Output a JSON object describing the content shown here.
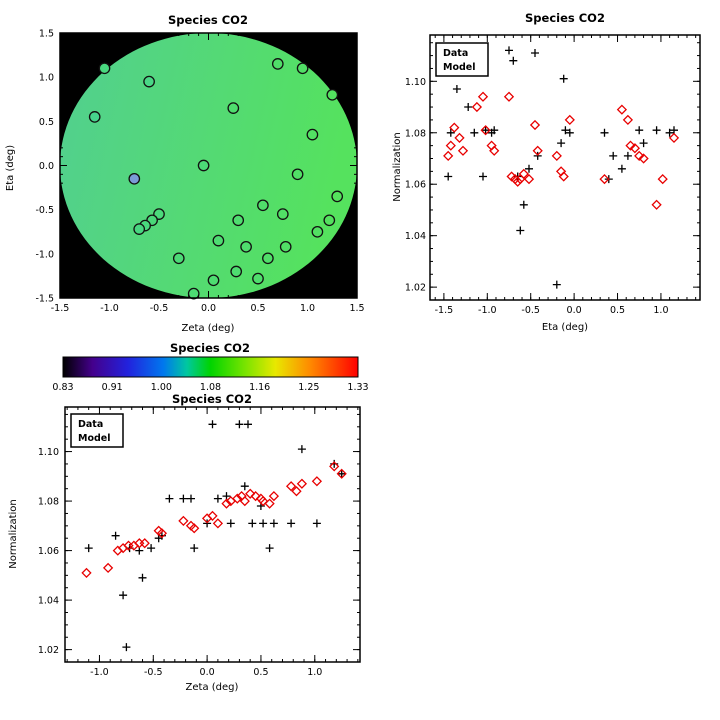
{
  "page": {
    "background": "#ffffff"
  },
  "chart_data": [
    {
      "id": "map",
      "type": "heatmap",
      "title": "Species CO2",
      "xlabel": "Zeta (deg)",
      "ylabel": "Eta (deg)",
      "xlim": [
        -1.5,
        1.5
      ],
      "ylim": [
        -1.5,
        1.5
      ],
      "xticks": [
        -1.5,
        -1.0,
        -0.5,
        0.0,
        0.5,
        1.0,
        1.5
      ],
      "xtick_labels": [
        "-1.5",
        "-1.0",
        "-0.5",
        "0.0",
        "0.5",
        "1.0",
        "1.5"
      ],
      "yticks": [
        -1.5,
        -1.0,
        -0.5,
        0.0,
        0.5,
        1.0,
        1.5
      ],
      "ytick_labels": [
        "-1.5",
        "-1.0",
        "-0.5",
        "0.0",
        "0.5",
        "1.0",
        "1.5"
      ],
      "minor_x": 0.1,
      "minor_y": 0.1,
      "background": "#000000",
      "disk": {
        "cx": 0,
        "cy": 0,
        "r": 1.5,
        "color_left": "#52cf90",
        "color_right": "#55e25e"
      },
      "points": [
        {
          "x": -1.05,
          "y": 1.1,
          "c": "#49d87f"
        },
        {
          "x": -0.6,
          "y": 0.95,
          "c": "#4ad786"
        },
        {
          "x": -1.15,
          "y": 0.55,
          "c": "#46d48c"
        },
        {
          "x": 0.25,
          "y": 0.65,
          "c": "#4fdd6e"
        },
        {
          "x": 0.7,
          "y": 1.15,
          "c": "#50de69"
        },
        {
          "x": 0.95,
          "y": 1.1,
          "c": "#51df66"
        },
        {
          "x": 1.25,
          "y": 0.8,
          "c": "#53e15f"
        },
        {
          "x": 1.05,
          "y": 0.35,
          "c": "#52e063"
        },
        {
          "x": -0.05,
          "y": 0.0,
          "c": "#4cda77"
        },
        {
          "x": -0.75,
          "y": -0.15,
          "c": "#7b9bd6"
        },
        {
          "x": 0.9,
          "y": -0.1,
          "c": "#51df66"
        },
        {
          "x": 1.3,
          "y": -0.35,
          "c": "#54e25c"
        },
        {
          "x": 0.55,
          "y": -0.45,
          "c": "#50de6a"
        },
        {
          "x": 0.75,
          "y": -0.55,
          "c": "#51df66"
        },
        {
          "x": -0.5,
          "y": -0.55,
          "c": "#4bd97b"
        },
        {
          "x": -0.57,
          "y": -0.62,
          "c": "#4ad779"
        },
        {
          "x": -0.64,
          "y": -0.68,
          "c": "#49d77d"
        },
        {
          "x": -0.7,
          "y": -0.72,
          "c": "#48d680"
        },
        {
          "x": 0.3,
          "y": -0.62,
          "c": "#4fdd6f"
        },
        {
          "x": 1.1,
          "y": -0.75,
          "c": "#52e062"
        },
        {
          "x": 1.22,
          "y": -0.62,
          "c": "#53e15e"
        },
        {
          "x": 0.1,
          "y": -0.85,
          "c": "#4edc72"
        },
        {
          "x": 0.38,
          "y": -0.92,
          "c": "#4fdd6d"
        },
        {
          "x": 0.78,
          "y": -0.92,
          "c": "#51df66"
        },
        {
          "x": -0.3,
          "y": -1.05,
          "c": "#4cda76"
        },
        {
          "x": 0.6,
          "y": -1.05,
          "c": "#50de69"
        },
        {
          "x": 0.28,
          "y": -1.2,
          "c": "#4edc70"
        },
        {
          "x": 0.5,
          "y": -1.28,
          "c": "#4fdd6c"
        },
        {
          "x": 0.05,
          "y": -1.3,
          "c": "#4edc71"
        },
        {
          "x": -0.15,
          "y": -1.45,
          "c": "#4ddb73"
        }
      ]
    },
    {
      "id": "colorbar",
      "type": "colorbar",
      "title": "Species CO2",
      "labels": [
        "0.83",
        "0.91",
        "1.00",
        "1.08",
        "1.16",
        "1.25",
        "1.33"
      ],
      "stops": [
        {
          "p": 0,
          "c": "#000000"
        },
        {
          "p": 0.1,
          "c": "#44008c"
        },
        {
          "p": 0.22,
          "c": "#2222dd"
        },
        {
          "p": 0.34,
          "c": "#0077ee"
        },
        {
          "p": 0.42,
          "c": "#00c8a0"
        },
        {
          "p": 0.5,
          "c": "#00d400"
        },
        {
          "p": 0.62,
          "c": "#7ce400"
        },
        {
          "p": 0.72,
          "c": "#e8e800"
        },
        {
          "p": 0.84,
          "c": "#ff8800"
        },
        {
          "p": 1,
          "c": "#ff0000"
        }
      ]
    },
    {
      "id": "scatter_eta",
      "type": "scatter",
      "title": "Species CO2",
      "xlabel": "Eta (deg)",
      "ylabel": "Normalization",
      "xlim": [
        -1.66,
        1.45
      ],
      "ylim": [
        1.015,
        1.118
      ],
      "xticks": [
        -1.5,
        -1.0,
        -0.5,
        0.0,
        0.5,
        1.0
      ],
      "xtick_labels": [
        "-1.5",
        "-1.0",
        "-0.5",
        "0.0",
        "0.5",
        "1.0"
      ],
      "yticks": [
        1.02,
        1.04,
        1.06,
        1.08,
        1.1
      ],
      "ytick_labels": [
        "1.02",
        "1.04",
        "1.06",
        "1.08",
        "1.10"
      ],
      "minor_x": 0.1,
      "minor_y": 0.005,
      "series": [
        {
          "name": "Data",
          "marker": "plus",
          "color": "#000000",
          "points": [
            [
              -1.45,
              1.063
            ],
            [
              -1.42,
              1.08
            ],
            [
              -1.35,
              1.097
            ],
            [
              -1.22,
              1.09
            ],
            [
              -1.15,
              1.08
            ],
            [
              -1.05,
              1.063
            ],
            [
              -1.02,
              1.081
            ],
            [
              -0.95,
              1.08
            ],
            [
              -0.92,
              1.081
            ],
            [
              -0.75,
              1.112
            ],
            [
              -0.7,
              1.108
            ],
            [
              -0.65,
              1.063
            ],
            [
              -0.62,
              1.042
            ],
            [
              -0.58,
              1.052
            ],
            [
              -0.52,
              1.066
            ],
            [
              -0.45,
              1.111
            ],
            [
              -0.42,
              1.071
            ],
            [
              -0.2,
              1.021
            ],
            [
              -0.15,
              1.076
            ],
            [
              -0.12,
              1.101
            ],
            [
              -0.1,
              1.081
            ],
            [
              -0.05,
              1.08
            ],
            [
              0.35,
              1.08
            ],
            [
              0.4,
              1.062
            ],
            [
              0.45,
              1.071
            ],
            [
              0.55,
              1.066
            ],
            [
              0.62,
              1.071
            ],
            [
              0.75,
              1.081
            ],
            [
              0.8,
              1.076
            ],
            [
              0.95,
              1.081
            ],
            [
              1.1,
              1.08
            ],
            [
              1.15,
              1.081
            ]
          ]
        },
        {
          "name": "Model",
          "marker": "diamond",
          "color": "#e80000",
          "points": [
            [
              -1.45,
              1.071
            ],
            [
              -1.42,
              1.075
            ],
            [
              -1.38,
              1.082
            ],
            [
              -1.32,
              1.078
            ],
            [
              -1.28,
              1.073
            ],
            [
              -1.12,
              1.09
            ],
            [
              -1.05,
              1.094
            ],
            [
              -1.02,
              1.081
            ],
            [
              -0.95,
              1.075
            ],
            [
              -0.92,
              1.073
            ],
            [
              -0.75,
              1.094
            ],
            [
              -0.72,
              1.063
            ],
            [
              -0.68,
              1.062
            ],
            [
              -0.65,
              1.061
            ],
            [
              -0.62,
              1.062
            ],
            [
              -0.58,
              1.064
            ],
            [
              -0.52,
              1.062
            ],
            [
              -0.45,
              1.083
            ],
            [
              -0.42,
              1.073
            ],
            [
              -0.2,
              1.071
            ],
            [
              -0.15,
              1.065
            ],
            [
              -0.12,
              1.063
            ],
            [
              -0.05,
              1.085
            ],
            [
              0.35,
              1.062
            ],
            [
              0.55,
              1.089
            ],
            [
              0.62,
              1.085
            ],
            [
              0.65,
              1.075
            ],
            [
              0.7,
              1.074
            ],
            [
              0.75,
              1.071
            ],
            [
              0.8,
              1.07
            ],
            [
              0.95,
              1.052
            ],
            [
              1.02,
              1.062
            ],
            [
              1.15,
              1.078
            ]
          ]
        }
      ]
    },
    {
      "id": "scatter_zeta",
      "type": "scatter",
      "title": "Species CO2",
      "xlabel": "Zeta (deg)",
      "ylabel": "Normalization",
      "xlim": [
        -1.32,
        1.42
      ],
      "ylim": [
        1.015,
        1.118
      ],
      "xticks": [
        -1.0,
        -0.5,
        0.0,
        0.5,
        1.0
      ],
      "xtick_labels": [
        "-1.0",
        "-0.5",
        "0.0",
        "0.5",
        "1.0"
      ],
      "yticks": [
        1.02,
        1.04,
        1.06,
        1.08,
        1.1
      ],
      "ytick_labels": [
        "1.02",
        "1.04",
        "1.06",
        "1.08",
        "1.10"
      ],
      "minor_x": 0.1,
      "minor_y": 0.005,
      "series": [
        {
          "name": "Data",
          "marker": "plus",
          "color": "#000000",
          "points": [
            [
              -1.1,
              1.061
            ],
            [
              -0.85,
              1.066
            ],
            [
              -0.78,
              1.042
            ],
            [
              -0.75,
              1.021
            ],
            [
              -0.72,
              1.061
            ],
            [
              -0.63,
              1.06
            ],
            [
              -0.6,
              1.049
            ],
            [
              -0.52,
              1.061
            ],
            [
              -0.45,
              1.065
            ],
            [
              -0.42,
              1.066
            ],
            [
              -0.35,
              1.081
            ],
            [
              -0.22,
              1.081
            ],
            [
              -0.15,
              1.081
            ],
            [
              -0.12,
              1.061
            ],
            [
              0.0,
              1.071
            ],
            [
              0.05,
              1.111
            ],
            [
              0.1,
              1.081
            ],
            [
              0.18,
              1.082
            ],
            [
              0.22,
              1.071
            ],
            [
              0.3,
              1.111
            ],
            [
              0.38,
              1.111
            ],
            [
              0.35,
              1.086
            ],
            [
              0.42,
              1.071
            ],
            [
              0.5,
              1.078
            ],
            [
              0.52,
              1.071
            ],
            [
              0.58,
              1.061
            ],
            [
              0.62,
              1.071
            ],
            [
              0.78,
              1.071
            ],
            [
              0.88,
              1.101
            ],
            [
              1.02,
              1.071
            ],
            [
              1.18,
              1.095
            ],
            [
              1.25,
              1.091
            ]
          ]
        },
        {
          "name": "Model",
          "marker": "diamond",
          "color": "#e80000",
          "points": [
            [
              -1.12,
              1.051
            ],
            [
              -0.92,
              1.053
            ],
            [
              -0.83,
              1.06
            ],
            [
              -0.78,
              1.061
            ],
            [
              -0.73,
              1.062
            ],
            [
              -0.68,
              1.062
            ],
            [
              -0.63,
              1.063
            ],
            [
              -0.58,
              1.063
            ],
            [
              -0.45,
              1.068
            ],
            [
              -0.42,
              1.067
            ],
            [
              -0.22,
              1.072
            ],
            [
              -0.15,
              1.07
            ],
            [
              -0.12,
              1.069
            ],
            [
              0.0,
              1.073
            ],
            [
              0.05,
              1.074
            ],
            [
              0.1,
              1.071
            ],
            [
              0.18,
              1.079
            ],
            [
              0.22,
              1.08
            ],
            [
              0.28,
              1.081
            ],
            [
              0.32,
              1.082
            ],
            [
              0.35,
              1.08
            ],
            [
              0.4,
              1.083
            ],
            [
              0.45,
              1.082
            ],
            [
              0.5,
              1.081
            ],
            [
              0.52,
              1.08
            ],
            [
              0.58,
              1.079
            ],
            [
              0.62,
              1.082
            ],
            [
              0.78,
              1.086
            ],
            [
              0.83,
              1.084
            ],
            [
              0.88,
              1.087
            ],
            [
              1.02,
              1.088
            ],
            [
              1.18,
              1.094
            ],
            [
              1.25,
              1.091
            ]
          ]
        }
      ]
    }
  ]
}
